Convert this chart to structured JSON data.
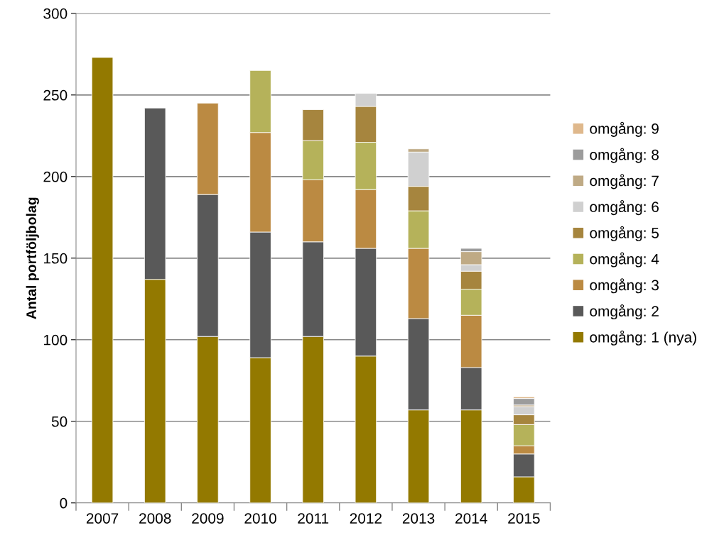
{
  "chart_data": {
    "type": "bar",
    "stacked": true,
    "ylabel": "Antal portföljbolag",
    "categories": [
      "2007",
      "2008",
      "2009",
      "2010",
      "2011",
      "2012",
      "2013",
      "2014",
      "2015"
    ],
    "ylim": [
      0,
      300
    ],
    "yticks": [
      0,
      50,
      100,
      150,
      200,
      250,
      300
    ],
    "grid": "y",
    "legend": "right",
    "series": [
      {
        "name": "omgång: 1 (nya)",
        "color": "#937900",
        "values": [
          273,
          137,
          102,
          89,
          102,
          90,
          57,
          57,
          16
        ]
      },
      {
        "name": "omgång: 2",
        "color": "#595959",
        "values": [
          null,
          105,
          87,
          77,
          58,
          66,
          56,
          26,
          14
        ]
      },
      {
        "name": "omgång: 3",
        "color": "#bb8a42",
        "values": [
          null,
          null,
          56,
          61,
          38,
          36,
          43,
          32,
          5
        ]
      },
      {
        "name": "omgång: 4",
        "color": "#b5b25a",
        "values": [
          null,
          null,
          null,
          38,
          24,
          29,
          23,
          16,
          13
        ]
      },
      {
        "name": "omgång: 5",
        "color": "#a6853e",
        "values": [
          null,
          null,
          null,
          null,
          19,
          22,
          15,
          11,
          6
        ]
      },
      {
        "name": "omgång: 6",
        "color": "#d0d0d0",
        "values": [
          null,
          null,
          null,
          null,
          null,
          8,
          21,
          4,
          5
        ]
      },
      {
        "name": "omgång: 7",
        "color": "#bfaa85",
        "values": [
          null,
          null,
          null,
          null,
          null,
          null,
          2,
          8,
          1
        ]
      },
      {
        "name": "omgång: 8",
        "color": "#9c9c9c",
        "values": [
          null,
          null,
          null,
          null,
          null,
          null,
          null,
          2,
          4
        ]
      },
      {
        "name": "omgång: 9",
        "color": "#dfb88c",
        "values": [
          null,
          null,
          null,
          null,
          null,
          null,
          null,
          null,
          1
        ]
      }
    ]
  }
}
